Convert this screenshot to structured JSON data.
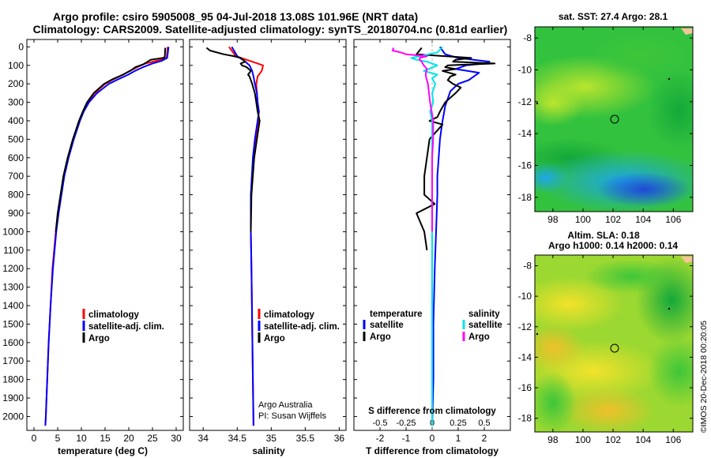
{
  "header": {
    "title_line1": "Argo profile: csiro 5905008_95 04-Jul-2018 13.08S 101.96E (NRT data)",
    "title_line2": "Climatology: CARS2009. Satellite-adjusted climatology: synTS_20180704.nc (0.81d earlier)"
  },
  "colors": {
    "climatology": "#ff0000",
    "satellite": "#0000ff",
    "argo": "#000000",
    "sal_satellite": "#00e5e5",
    "sal_argo": "#ff00ff"
  },
  "depth_axis": {
    "ticks": [
      0,
      100,
      200,
      300,
      400,
      500,
      600,
      700,
      800,
      900,
      1000,
      1100,
      1200,
      1300,
      1400,
      1500,
      1600,
      1700,
      1800,
      1900,
      2000
    ],
    "ylim": [
      2075,
      -40
    ]
  },
  "chart_data": [
    {
      "id": "temperature",
      "type": "line",
      "xlabel": "temperature (deg C)",
      "ylabel": "",
      "xlim": [
        -1.5,
        31.5
      ],
      "xticks": [
        0,
        5,
        10,
        15,
        20,
        25,
        30
      ],
      "legend": {
        "position": "lower-right",
        "items": [
          "climatology",
          "satellite-adj. clim.",
          "Argo"
        ]
      },
      "series": [
        {
          "name": "climatology",
          "color": "#ff0000",
          "depth": [
            0,
            60,
            75,
            90,
            110,
            130,
            150,
            175,
            200,
            250,
            300,
            350,
            400,
            500,
            600,
            700,
            800,
            900,
            1000,
            1200,
            1400,
            1600,
            1800,
            2000,
            2050
          ],
          "values": [
            28.2,
            28.0,
            26.0,
            23.5,
            21.8,
            20.2,
            18.8,
            16.8,
            15.0,
            12.8,
            11.3,
            10.4,
            9.6,
            8.3,
            7.2,
            6.3,
            5.7,
            5.1,
            4.6,
            3.9,
            3.5,
            3.1,
            2.8,
            2.5,
            2.4
          ]
        },
        {
          "name": "satellite-adj. clim.",
          "color": "#0000ff",
          "depth": [
            0,
            60,
            75,
            90,
            110,
            130,
            150,
            175,
            200,
            250,
            300,
            350,
            400,
            500,
            600,
            700,
            800,
            900,
            1000,
            1200,
            1400,
            1600,
            1800,
            2000,
            2050
          ],
          "values": [
            28.4,
            28.1,
            27.0,
            25.0,
            23.0,
            21.3,
            19.9,
            17.8,
            15.8,
            13.3,
            11.6,
            10.5,
            9.7,
            8.4,
            7.3,
            6.4,
            5.8,
            5.2,
            4.7,
            4.0,
            3.5,
            3.1,
            2.8,
            2.5,
            2.4
          ]
        },
        {
          "name": "Argo",
          "color": "#000000",
          "depth": [
            5,
            55,
            60,
            70,
            80,
            95,
            110,
            130,
            150,
            175,
            200,
            250,
            300,
            350,
            400,
            500,
            600,
            700,
            800,
            900,
            1000
          ],
          "values": [
            27.7,
            27.6,
            27.2,
            24.6,
            24.0,
            23.0,
            21.4,
            20.3,
            18.8,
            16.6,
            14.8,
            12.6,
            11.2,
            10.3,
            9.5,
            8.2,
            7.1,
            6.2,
            5.6,
            5.0,
            4.6
          ]
        }
      ],
      "annotations": []
    },
    {
      "id": "salinity",
      "type": "line",
      "xlabel": "salinity",
      "ylabel": "",
      "xlim": [
        33.8,
        36.1
      ],
      "xticks": [
        34,
        34.5,
        35,
        35.5,
        36
      ],
      "legend": {
        "position": "lower-right",
        "items": [
          "climatology",
          "satellite-adj. clim.",
          "Argo"
        ]
      },
      "series": [
        {
          "name": "climatology",
          "color": "#ff0000",
          "depth": [
            0,
            50,
            80,
            100,
            130,
            160,
            200,
            250,
            300,
            350,
            400,
            500,
            600,
            800,
            1000,
            1200,
            1500,
            1800,
            2050
          ],
          "values": [
            34.38,
            34.48,
            34.72,
            34.88,
            34.86,
            34.8,
            34.78,
            34.79,
            34.8,
            34.81,
            34.82,
            34.78,
            34.74,
            34.7,
            34.7,
            34.71,
            34.72,
            34.73,
            34.74
          ]
        },
        {
          "name": "satellite-adj. clim.",
          "color": "#0000ff",
          "depth": [
            0,
            50,
            80,
            100,
            130,
            160,
            200,
            250,
            300,
            350,
            400,
            500,
            600,
            800,
            1000,
            1200,
            1500,
            1800,
            2050
          ],
          "values": [
            34.42,
            34.5,
            34.62,
            34.68,
            34.72,
            34.74,
            34.76,
            34.79,
            34.8,
            34.82,
            34.8,
            34.76,
            34.73,
            34.7,
            34.7,
            34.71,
            34.72,
            34.73,
            34.74
          ]
        },
        {
          "name": "Argo",
          "color": "#000000",
          "depth": [
            5,
            20,
            40,
            50,
            60,
            80,
            90,
            100,
            110,
            130,
            150,
            160,
            200,
            250,
            300,
            350,
            400,
            500,
            600,
            800,
            1000
          ],
          "values": [
            34.05,
            34.1,
            34.3,
            34.45,
            34.55,
            34.62,
            34.55,
            34.57,
            34.64,
            34.7,
            34.66,
            34.68,
            34.72,
            34.76,
            34.78,
            34.8,
            34.83,
            34.79,
            34.75,
            34.71,
            34.7
          ]
        }
      ],
      "annotations": [
        "Argo Australia",
        "PI: Susan Wijffels"
      ]
    },
    {
      "id": "difference",
      "type": "line",
      "xlabel": "T difference from climatology",
      "xlabel_top": "S difference from climatology",
      "ylabel": "",
      "xlim": [
        -3,
        3
      ],
      "xticks": [
        -2,
        -1,
        0,
        1,
        2
      ],
      "xticks_S": [
        "-0.5",
        "-0.25",
        "0",
        "0.25",
        "0.5"
      ],
      "legend": {
        "position": "lower-left and lower-right",
        "temperature_title": "temperature",
        "salinity_title": "salinity",
        "temperature_items": [
          "satellite",
          "Argo"
        ],
        "salinity_items": [
          "satellite",
          "Argo"
        ]
      },
      "series": [
        {
          "name": "T satellite",
          "color": "#0000ff",
          "depth": [
            0,
            40,
            60,
            80,
            90,
            100,
            120,
            140,
            160,
            180,
            200,
            240,
            280,
            320,
            360,
            400,
            450,
            500,
            600,
            700,
            800,
            1000,
            1200,
            1500,
            1800,
            2050
          ],
          "values": [
            0.3,
            0.5,
            1.0,
            2.2,
            2.0,
            1.3,
            0.9,
            1.8,
            1.6,
            1.4,
            1.0,
            0.7,
            0.6,
            0.5,
            0.45,
            0.4,
            0.35,
            0.3,
            0.25,
            0.2,
            0.2,
            0.15,
            0.1,
            0.05,
            0.05,
            0.0
          ]
        },
        {
          "name": "T Argo",
          "color": "#000000",
          "depth": [
            5,
            40,
            55,
            60,
            70,
            80,
            90,
            100,
            110,
            120,
            130,
            150,
            160,
            180,
            200,
            220,
            250,
            300,
            350,
            380,
            400,
            420,
            500,
            600,
            700,
            800,
            850,
            900,
            1000,
            1100
          ],
          "values": [
            -0.4,
            -0.6,
            1.0,
            1.5,
            0.9,
            0.8,
            2.4,
            0.6,
            0.5,
            0.9,
            0.4,
            0.9,
            0.7,
            0.6,
            0.8,
            1.1,
            0.9,
            0.5,
            0.3,
            0.2,
            -0.1,
            0.4,
            -0.1,
            -0.2,
            -0.3,
            -0.3,
            0.1,
            -0.6,
            -0.3,
            -0.2
          ]
        },
        {
          "name": "S satellite",
          "color": "#00e5e5",
          "depth": [
            0,
            30,
            60,
            70,
            80,
            100,
            130,
            150,
            170,
            200,
            250,
            300,
            350,
            400,
            500,
            600,
            800,
            1000,
            1200,
            1500,
            1800,
            2050
          ],
          "values": [
            0.1,
            0.05,
            -0.2,
            -0.15,
            -0.05,
            0.05,
            -0.08,
            0.05,
            0.0,
            0.03,
            0.0,
            0.01,
            -0.02,
            0.0,
            0.0,
            0.0,
            0.0,
            0.0,
            0.0,
            0.0,
            0.0,
            0.0
          ]
        },
        {
          "name": "S Argo",
          "color": "#ff00ff",
          "depth": [
            5,
            20,
            30,
            40,
            50,
            60,
            70,
            80,
            100,
            120,
            140,
            160,
            200,
            250,
            300,
            400,
            500,
            600,
            800,
            1000
          ],
          "values": [
            -0.37,
            -0.38,
            -0.3,
            -0.25,
            -0.05,
            -0.12,
            -0.12,
            -0.1,
            -0.08,
            -0.05,
            -0.06,
            -0.06,
            -0.04,
            -0.03,
            -0.02,
            0.01,
            0.01,
            0.0,
            0.0,
            0.0
          ]
        }
      ],
      "annotations": []
    },
    {
      "id": "sst_map",
      "type": "heatmap",
      "title": "sat. SST: 27.4 Argo: 28.1",
      "xticks": [
        98,
        100,
        102,
        104,
        106
      ],
      "yticks": [
        -8,
        -10,
        -12,
        -14,
        -16,
        -18
      ],
      "xlim": [
        96.8,
        107.3
      ],
      "ylim": [
        -18.9,
        -7.3
      ],
      "argo_position": {
        "lon": 101.96,
        "lat": -13.08
      }
    },
    {
      "id": "sla_map",
      "type": "heatmap",
      "title_line1": "Altim. SLA: 0.18",
      "title_line2": "Argo h1000: 0.14 h2000: 0.14",
      "xticks": [
        98,
        100,
        102,
        104,
        106
      ],
      "yticks": [
        -8,
        -10,
        -12,
        -14,
        -16,
        -18
      ],
      "xlim": [
        96.8,
        107.3
      ],
      "ylim": [
        -18.9,
        -7.3
      ],
      "argo_position": {
        "lon": 101.96,
        "lat": -13.08
      }
    }
  ],
  "footer": {
    "credit": "©IMOS 20-Dec-2018 00:20:05"
  }
}
